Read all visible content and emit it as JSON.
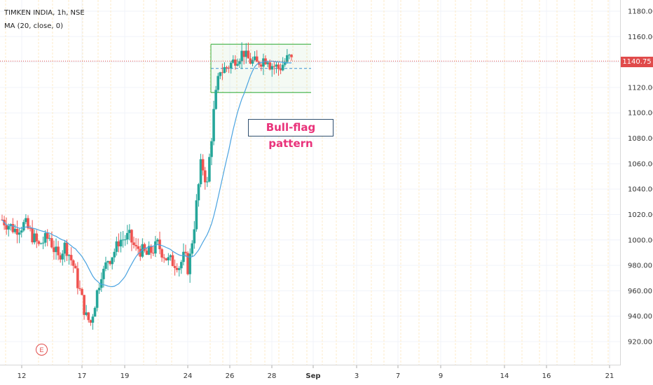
{
  "legend": {
    "symbol_line": "TIMKEN INDIA, 1h, NSE",
    "indicator_line": "MA (20, close, 0)"
  },
  "last_price": "1140.75",
  "annotation": "Bull-flag pattern",
  "earnings_marker": "E",
  "colors": {
    "up": "#26a69a",
    "down": "#ef5350",
    "ma": "#4aa3e0",
    "flag": "#3cb043",
    "session_line": "#fdebc8",
    "price_line": "#e04b4b"
  },
  "chart_data": {
    "type": "candlestick",
    "symbol": "TIMKEN INDIA",
    "interval": "1h",
    "exchange": "NSE",
    "y_range": [
      900,
      1190
    ],
    "y_ticks": [
      "920.00",
      "940.00",
      "960.00",
      "980.00",
      "1000.00",
      "1020.00",
      "1040.00",
      "1060.00",
      "1080.00",
      "1100.00",
      "1120.00",
      "1140.00",
      "1160.00",
      "1180.00"
    ],
    "x_ticks": [
      "12",
      "17",
      "19",
      "24",
      "26",
      "28",
      "Sep",
      "3",
      "7",
      "9",
      "14",
      "16",
      "21"
    ],
    "current_price": 1140.75,
    "ma": {
      "name": "MA (20, close, 0)",
      "period": 20
    },
    "flag_pattern": {
      "label": "Bull-flag pattern",
      "upper": 1154,
      "lower": 1116,
      "mid": 1135
    },
    "price_path": [
      [
        1016,
        1
      ],
      [
        1008,
        6
      ],
      [
        1012,
        4
      ],
      [
        995,
        7
      ],
      [
        1002,
        5
      ],
      [
        985,
        4
      ],
      [
        995,
        3
      ],
      [
        980,
        4
      ],
      [
        946,
        5
      ],
      [
        935,
        3
      ],
      [
        975,
        5
      ],
      [
        985,
        3
      ],
      [
        994,
        4
      ],
      [
        1002,
        5
      ],
      [
        992,
        4
      ],
      [
        988,
        5
      ],
      [
        994,
        4
      ],
      [
        986,
        5
      ],
      [
        982,
        5
      ],
      [
        986,
        3
      ],
      [
        978,
        2
      ],
      [
        1000,
        2
      ],
      [
        1058,
        4
      ],
      [
        1043,
        3
      ],
      [
        1100,
        3
      ],
      [
        1135,
        3
      ],
      [
        1140,
        6
      ],
      [
        1148,
        5
      ],
      [
        1138,
        6
      ],
      [
        1144,
        5
      ],
      [
        1135,
        5
      ],
      [
        1142,
        4
      ],
      [
        1140.75,
        2
      ]
    ]
  }
}
